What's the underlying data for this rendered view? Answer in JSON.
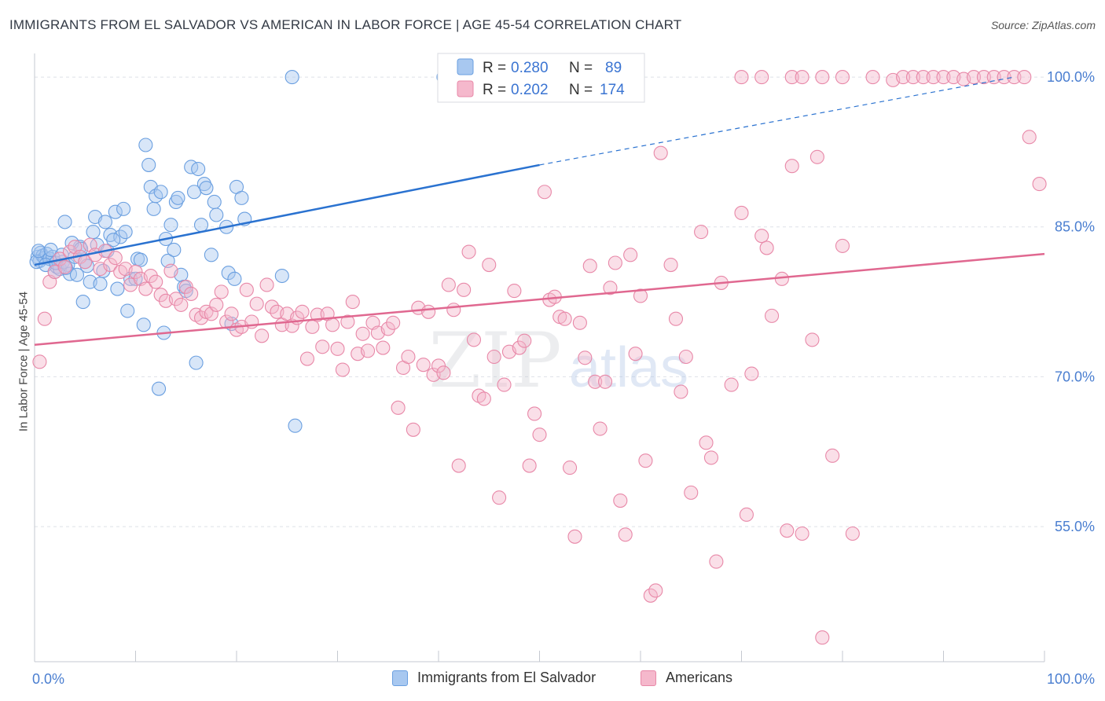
{
  "header": {
    "title": "IMMIGRANTS FROM EL SALVADOR VS AMERICAN IN LABOR FORCE | AGE 45-54 CORRELATION CHART",
    "source": "Source: ZipAtlas.com"
  },
  "watermark": {
    "zip": "ZIP",
    "atlas": "atlas"
  },
  "legend_top": {
    "rows": [
      {
        "r_label": "R = ",
        "r_value": "0.280",
        "n_label": "N = ",
        "n_value": "89"
      },
      {
        "r_label": "R = ",
        "r_value": "0.202",
        "n_label": "N = ",
        "n_value": "174"
      }
    ]
  },
  "legend_bottom": {
    "items": [
      "Immigrants from El Salvador",
      "Americans"
    ]
  },
  "chart_data": {
    "type": "scatter",
    "ylabel": "In Labor Force | Age 45-54",
    "xlabel": "",
    "x_tick_labels": {
      "left": "0.0%",
      "right": "100.0%"
    },
    "y_tick_labels": [
      "55.0%",
      "70.0%",
      "85.0%",
      "100.0%"
    ],
    "y_ticks": [
      55,
      70,
      85,
      100
    ],
    "xlim": [
      0,
      100
    ],
    "ylim": [
      40,
      101.5
    ],
    "grid": true,
    "colors": {
      "blue_fill": "#a8c8f0",
      "blue_stroke": "#6a9fe0",
      "blue_line": "#2a72d0",
      "pink_fill": "#f5b8cc",
      "pink_stroke": "#e888a8",
      "pink_line": "#e06890",
      "axis_text": "#4a7ed0",
      "grid": "#dde1e8"
    },
    "series": [
      {
        "name": "Immigrants from El Salvador",
        "color": "blue",
        "trend": {
          "x0": 0,
          "y0": 81.2,
          "x1": 50,
          "y1": 91.2,
          "dash_to_x": 97,
          "dash_to_y": 100.0
        },
        "points": [
          [
            0.3,
            82
          ],
          [
            0.5,
            81.6
          ],
          [
            0.6,
            82.4
          ],
          [
            0.8,
            82.1
          ],
          [
            1,
            81.9
          ],
          [
            1.2,
            82.3
          ],
          [
            1.5,
            81.8
          ],
          [
            1.8,
            82
          ],
          [
            2,
            80.5
          ],
          [
            2.2,
            81
          ],
          [
            2.5,
            80.8
          ],
          [
            2.8,
            81.5
          ],
          [
            3,
            85.5
          ],
          [
            3.3,
            81.2
          ],
          [
            3.5,
            80.3
          ],
          [
            4,
            82
          ],
          [
            4.2,
            80.2
          ],
          [
            4.5,
            83
          ],
          [
            4.8,
            77.5
          ],
          [
            5,
            81.5
          ],
          [
            5.5,
            79.5
          ],
          [
            5.8,
            84.5
          ],
          [
            6,
            86
          ],
          [
            6.2,
            83.2
          ],
          [
            6.5,
            79.3
          ],
          [
            7,
            85.5
          ],
          [
            7.2,
            82.6
          ],
          [
            7.5,
            84.2
          ],
          [
            8,
            86.5
          ],
          [
            8.2,
            78.8
          ],
          [
            8.5,
            84
          ],
          [
            8.8,
            86.8
          ],
          [
            9,
            84.5
          ],
          [
            9.2,
            76.6
          ],
          [
            9.5,
            79.8
          ],
          [
            10,
            79.8
          ],
          [
            10.2,
            81.8
          ],
          [
            10.5,
            81.7
          ],
          [
            10.8,
            75.2
          ],
          [
            11,
            93.2
          ],
          [
            11.3,
            91.2
          ],
          [
            11.5,
            89
          ],
          [
            11.8,
            86.8
          ],
          [
            12,
            88.1
          ],
          [
            12.3,
            68.8
          ],
          [
            12.5,
            88.5
          ],
          [
            12.8,
            74.4
          ],
          [
            13,
            83.8
          ],
          [
            13.2,
            81.6
          ],
          [
            13.5,
            85.2
          ],
          [
            13.8,
            82.7
          ],
          [
            14,
            87.5
          ],
          [
            14.2,
            87.9
          ],
          [
            14.5,
            80.2
          ],
          [
            14.8,
            79
          ],
          [
            15,
            78.6
          ],
          [
            15.5,
            91
          ],
          [
            15.8,
            88.5
          ],
          [
            16,
            71.4
          ],
          [
            16.2,
            90.8
          ],
          [
            16.5,
            85.2
          ],
          [
            16.8,
            89.3
          ],
          [
            17,
            88.9
          ],
          [
            17.5,
            82.2
          ],
          [
            17.8,
            87.5
          ],
          [
            18,
            86.2
          ],
          [
            19,
            85
          ],
          [
            19.2,
            80.4
          ],
          [
            19.5,
            75.3
          ],
          [
            19.8,
            79.8
          ],
          [
            20,
            89
          ],
          [
            20.5,
            87.9
          ],
          [
            20.8,
            85.8
          ],
          [
            24.5,
            80.1
          ],
          [
            25.5,
            100
          ],
          [
            25.8,
            65.1
          ],
          [
            40.5,
            100
          ],
          [
            0.2,
            81.5
          ],
          [
            0.4,
            82.6
          ],
          [
            1.1,
            81.2
          ],
          [
            1.6,
            82.7
          ],
          [
            2.1,
            81.4
          ],
          [
            2.7,
            82.2
          ],
          [
            3.1,
            80.9
          ],
          [
            3.7,
            83.4
          ],
          [
            4.6,
            82.8
          ],
          [
            5.2,
            81.1
          ],
          [
            6.8,
            80.6
          ],
          [
            7.8,
            83.7
          ]
        ]
      },
      {
        "name": "Americans",
        "color": "pink",
        "trend": {
          "x0": 0,
          "y0": 73.2,
          "x1": 100,
          "y1": 82.3
        },
        "points": [
          [
            0.5,
            71.5
          ],
          [
            1,
            75.8
          ],
          [
            1.5,
            79.5
          ],
          [
            2,
            80.5
          ],
          [
            2.5,
            81.8
          ],
          [
            3,
            81
          ],
          [
            3.5,
            82.5
          ],
          [
            4,
            83
          ],
          [
            4.5,
            82
          ],
          [
            5,
            81.5
          ],
          [
            5.5,
            83.2
          ],
          [
            6,
            82.2
          ],
          [
            6.5,
            80.8
          ],
          [
            7,
            82.6
          ],
          [
            7.5,
            81.2
          ],
          [
            8,
            81.9
          ],
          [
            8.5,
            80.5
          ],
          [
            9,
            80.8
          ],
          [
            9.5,
            79.2
          ],
          [
            10,
            80.5
          ],
          [
            10.5,
            79.8
          ],
          [
            11,
            78.8
          ],
          [
            11.5,
            80.1
          ],
          [
            12,
            79.5
          ],
          [
            12.5,
            78.2
          ],
          [
            13,
            77.6
          ],
          [
            13.5,
            80.6
          ],
          [
            14,
            77.8
          ],
          [
            14.5,
            77.2
          ],
          [
            15,
            79
          ],
          [
            15.5,
            78.3
          ],
          [
            16,
            76.2
          ],
          [
            16.5,
            75.9
          ],
          [
            17,
            76.5
          ],
          [
            17.5,
            76.3
          ],
          [
            18,
            77.2
          ],
          [
            18.5,
            78.5
          ],
          [
            19,
            75.5
          ],
          [
            19.5,
            76.3
          ],
          [
            20,
            74.7
          ],
          [
            20.5,
            75
          ],
          [
            21,
            78.7
          ],
          [
            21.5,
            75.5
          ],
          [
            22,
            77.3
          ],
          [
            22.5,
            74.1
          ],
          [
            23,
            79.2
          ],
          [
            23.5,
            77
          ],
          [
            24,
            76.5
          ],
          [
            24.5,
            75.2
          ],
          [
            25,
            76.3
          ],
          [
            25.5,
            75.1
          ],
          [
            26,
            75.9
          ],
          [
            26.5,
            76.5
          ],
          [
            27,
            71.8
          ],
          [
            27.5,
            75
          ],
          [
            28,
            76.2
          ],
          [
            28.5,
            73
          ],
          [
            29,
            76.3
          ],
          [
            29.5,
            75.2
          ],
          [
            30,
            72.8
          ],
          [
            30.5,
            70.7
          ],
          [
            31,
            75.5
          ],
          [
            31.5,
            77.5
          ],
          [
            32,
            72.3
          ],
          [
            32.5,
            74.3
          ],
          [
            33,
            72.6
          ],
          [
            33.5,
            75.4
          ],
          [
            34,
            74.4
          ],
          [
            34.5,
            72.9
          ],
          [
            35,
            74.8
          ],
          [
            35.5,
            75.4
          ],
          [
            36,
            66.9
          ],
          [
            36.5,
            70.9
          ],
          [
            37,
            72
          ],
          [
            37.5,
            64.7
          ],
          [
            38,
            76.9
          ],
          [
            38.5,
            71.2
          ],
          [
            39,
            76.5
          ],
          [
            39.5,
            70.2
          ],
          [
            40,
            71.1
          ],
          [
            40.5,
            70.4
          ],
          [
            41,
            79.2
          ],
          [
            41.5,
            76.7
          ],
          [
            42,
            61.1
          ],
          [
            42.5,
            78.7
          ],
          [
            43,
            82.5
          ],
          [
            43.5,
            73.7
          ],
          [
            44,
            68.1
          ],
          [
            44.5,
            67.8
          ],
          [
            45,
            81.2
          ],
          [
            45.5,
            72
          ],
          [
            46,
            57.9
          ],
          [
            46.5,
            69.2
          ],
          [
            47,
            72.5
          ],
          [
            47.5,
            78.6
          ],
          [
            48,
            72.9
          ],
          [
            48.5,
            73.6
          ],
          [
            49,
            61.1
          ],
          [
            49.5,
            66.3
          ],
          [
            50,
            64.2
          ],
          [
            50.5,
            88.5
          ],
          [
            51,
            77.7
          ],
          [
            51.5,
            78
          ],
          [
            52,
            76
          ],
          [
            52.5,
            75.8
          ],
          [
            53,
            60.9
          ],
          [
            53.5,
            54
          ],
          [
            54,
            75.4
          ],
          [
            54.5,
            71.9
          ],
          [
            55,
            81.1
          ],
          [
            55.5,
            69.5
          ],
          [
            56,
            64.8
          ],
          [
            56.5,
            69.5
          ],
          [
            57,
            78.9
          ],
          [
            57.5,
            81.4
          ],
          [
            58,
            57.6
          ],
          [
            58.5,
            54.2
          ],
          [
            59,
            82.2
          ],
          [
            59.5,
            72.3
          ],
          [
            60,
            78.1
          ],
          [
            60.5,
            61.6
          ],
          [
            61,
            48.1
          ],
          [
            61.5,
            48.6
          ],
          [
            62,
            92.4
          ],
          [
            63,
            81.2
          ],
          [
            63.5,
            75.8
          ],
          [
            64,
            68.5
          ],
          [
            64.5,
            72
          ],
          [
            65,
            58.4
          ],
          [
            66,
            84.5
          ],
          [
            66.5,
            63.4
          ],
          [
            67,
            61.9
          ],
          [
            67.5,
            51.5
          ],
          [
            68,
            79.4
          ],
          [
            69,
            69.2
          ],
          [
            70,
            86.4
          ],
          [
            70.5,
            56.2
          ],
          [
            71,
            70.3
          ],
          [
            72,
            84.1
          ],
          [
            72.5,
            82.9
          ],
          [
            73,
            76.1
          ],
          [
            74,
            79.8
          ],
          [
            74.5,
            54.6
          ],
          [
            75,
            91.1
          ],
          [
            76,
            54.3
          ],
          [
            77,
            73.7
          ],
          [
            77.5,
            92
          ],
          [
            78,
            43.9
          ],
          [
            79,
            62.1
          ],
          [
            80,
            83.1
          ],
          [
            81,
            54.3
          ],
          [
            83,
            100
          ],
          [
            85,
            99.7
          ],
          [
            86,
            100
          ],
          [
            87,
            100
          ],
          [
            88,
            100
          ],
          [
            89,
            100
          ],
          [
            90,
            100
          ],
          [
            91,
            100
          ],
          [
            92,
            99.8
          ],
          [
            93,
            100
          ],
          [
            94,
            100
          ],
          [
            95,
            100
          ],
          [
            96,
            100
          ],
          [
            97,
            100
          ],
          [
            98,
            100
          ],
          [
            98.5,
            94
          ],
          [
            99.5,
            89.3
          ],
          [
            70,
            100
          ],
          [
            72,
            100
          ],
          [
            75,
            100
          ],
          [
            76,
            100
          ],
          [
            78,
            100
          ],
          [
            80,
            100
          ]
        ]
      }
    ]
  }
}
